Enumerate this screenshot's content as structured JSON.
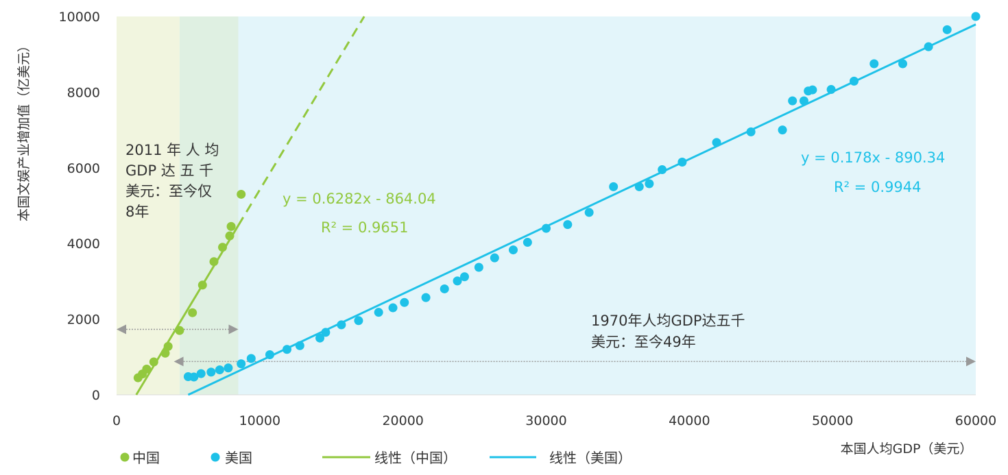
{
  "colors": {
    "china": "#92c83e",
    "usa": "#1ec1e8",
    "band_china_light": "#f1f5df",
    "band_china_mid": "#dff0e2",
    "band_usa": "#e3f5fa",
    "arrow": "#999999"
  },
  "chart_data": {
    "type": "scatter",
    "xlabel": "本国人均GDP（美元）",
    "ylabel": "本国文娱产业增加值（亿美元）",
    "xlim": [
      0,
      60000
    ],
    "ylim": [
      0,
      10000
    ],
    "x_ticks": [
      "0",
      "10000",
      "20000",
      "30000",
      "40000",
      "50000",
      "60000"
    ],
    "y_ticks": [
      "0",
      "2000",
      "4000",
      "6000",
      "8000",
      "10000"
    ],
    "series": [
      {
        "name": "中国",
        "points": [
          [
            1500,
            450
          ],
          [
            1800,
            550
          ],
          [
            2100,
            680
          ],
          [
            2600,
            870
          ],
          [
            3400,
            1100
          ],
          [
            3600,
            1280
          ],
          [
            4400,
            1700
          ],
          [
            5300,
            2170
          ],
          [
            6000,
            2900
          ],
          [
            6800,
            3520
          ],
          [
            7400,
            3900
          ],
          [
            7900,
            4200
          ],
          [
            8000,
            4450
          ],
          [
            8700,
            5300
          ]
        ]
      },
      {
        "name": "美国",
        "points": [
          [
            5000,
            480
          ],
          [
            5400,
            470
          ],
          [
            5900,
            560
          ],
          [
            6600,
            600
          ],
          [
            7200,
            660
          ],
          [
            7800,
            710
          ],
          [
            8700,
            820
          ],
          [
            9400,
            960
          ],
          [
            10700,
            1060
          ],
          [
            11900,
            1200
          ],
          [
            12800,
            1300
          ],
          [
            14200,
            1500
          ],
          [
            14600,
            1650
          ],
          [
            15700,
            1850
          ],
          [
            16900,
            1960
          ],
          [
            18300,
            2180
          ],
          [
            19300,
            2300
          ],
          [
            20100,
            2440
          ],
          [
            21600,
            2570
          ],
          [
            22900,
            2800
          ],
          [
            23800,
            3010
          ],
          [
            24300,
            3120
          ],
          [
            25300,
            3370
          ],
          [
            26400,
            3620
          ],
          [
            27700,
            3830
          ],
          [
            28700,
            4030
          ],
          [
            30000,
            4400
          ],
          [
            31500,
            4500
          ],
          [
            33000,
            4820
          ],
          [
            34700,
            5500
          ],
          [
            36500,
            5500
          ],
          [
            37200,
            5580
          ],
          [
            38100,
            5950
          ],
          [
            39500,
            6150
          ],
          [
            41900,
            6670
          ],
          [
            44300,
            6950
          ],
          [
            46500,
            7000
          ],
          [
            47200,
            7770
          ],
          [
            48000,
            7770
          ],
          [
            48300,
            8030
          ],
          [
            48600,
            8060
          ],
          [
            49900,
            8070
          ],
          [
            51500,
            8290
          ],
          [
            52900,
            8750
          ],
          [
            54900,
            8750
          ],
          [
            56700,
            9200
          ],
          [
            58000,
            9650
          ],
          [
            60000,
            10000
          ]
        ]
      }
    ],
    "trendlines": [
      {
        "name": "线性（中国）",
        "slope": 0.6282,
        "intercept": -864.04,
        "equation": "y = 0.6282x - 864.04",
        "r2": "R² = 0.9651"
      },
      {
        "name": "线性（美国）",
        "slope": 0.178,
        "intercept": -890.34,
        "equation": "y = 0.178x - 890.34",
        "r2": "R² = 0.9944"
      }
    ],
    "annotations": {
      "china_lines": [
        "2011 年 人 均",
        "GDP 达 五 千",
        "美元：至今仅",
        "8年"
      ],
      "usa_lines": [
        "1970年人均GDP达五千",
        "美元：至今49年"
      ]
    },
    "legend": {
      "placement": "bottom",
      "items": [
        "中国",
        "美国",
        "线性（中国）",
        "线性（美国）"
      ]
    }
  }
}
